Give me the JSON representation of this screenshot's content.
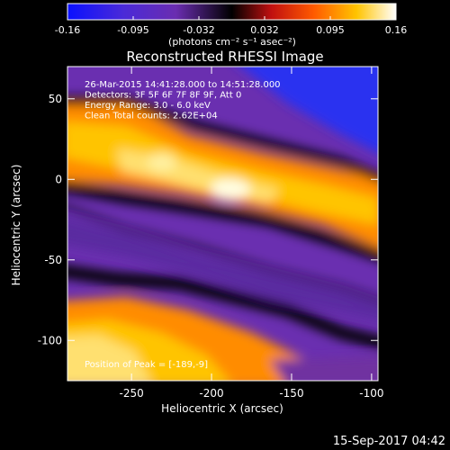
{
  "chart_data": {
    "type": "heatmap",
    "title": "Reconstructed RHESSI Image",
    "xlabel": "Heliocentric X (arcsec)",
    "ylabel": "Heliocentric Y (arcsec)",
    "xlim": [
      -290,
      -96
    ],
    "ylim": [
      -125,
      70
    ],
    "x_ticks": [
      -250,
      -200,
      -150,
      -100
    ],
    "y_ticks": [
      50,
      0,
      -50,
      -100
    ],
    "colorbar": {
      "range": [
        -0.16,
        0.16
      ],
      "ticks": [
        "-0.16",
        "-0.095",
        "-0.032",
        "0.032",
        "0.095",
        "0.16"
      ],
      "label": "(photons cm⁻² s⁻¹ asec⁻²)"
    },
    "annotations": [
      "26-Mar-2015 14:41:28.000 to 14:51:28.000",
      "Detectors: 3F 5F 6F 7F 8F 9F, Att 0",
      "Energy Range: 3.0 - 6.0 keV",
      "Clean    Total counts: 2.62E+04"
    ],
    "peak_label": "Position of Peak = [-189,-9]",
    "peak": [
      -189,
      -9
    ],
    "timestamp": "15-Sep-2017 04:42"
  }
}
